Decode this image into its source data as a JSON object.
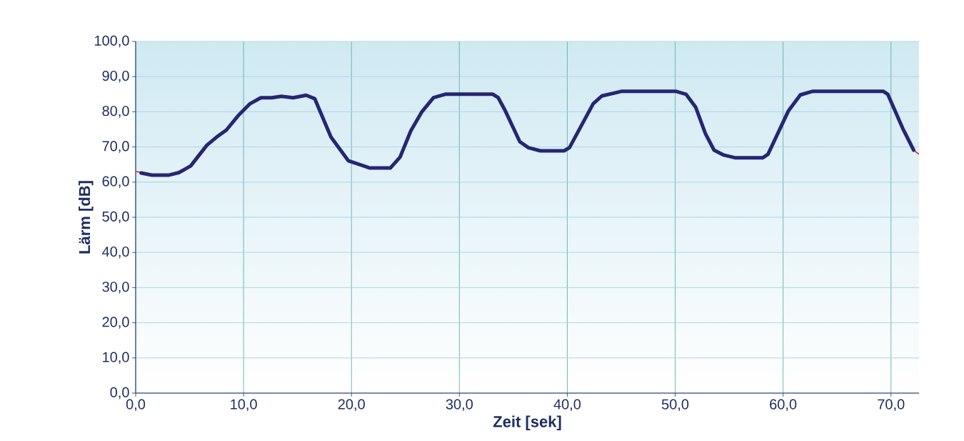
{
  "chart_data": {
    "type": "line",
    "xlabel": "Zeit [sek]",
    "ylabel": "Lärm [dB]",
    "xlim": [
      0,
      72.6
    ],
    "ylim": [
      0,
      100
    ],
    "xticks": [
      {
        "value": 0,
        "label": "0,0"
      },
      {
        "value": 10,
        "label": "10,0"
      },
      {
        "value": 20,
        "label": "20,0"
      },
      {
        "value": 30,
        "label": "30,0"
      },
      {
        "value": 40,
        "label": "40,0"
      },
      {
        "value": 50,
        "label": "50,0"
      },
      {
        "value": 60,
        "label": "60,0"
      },
      {
        "value": 70,
        "label": "70,0"
      }
    ],
    "yticks": [
      {
        "value": 0,
        "label": "0,0"
      },
      {
        "value": 10,
        "label": "10,0"
      },
      {
        "value": 20,
        "label": "20,0"
      },
      {
        "value": 30,
        "label": "30,0"
      },
      {
        "value": 40,
        "label": "40,0"
      },
      {
        "value": 50,
        "label": "50,0"
      },
      {
        "value": 60,
        "label": "60,0"
      },
      {
        "value": 70,
        "label": "70,0"
      },
      {
        "value": 80,
        "label": "80,0"
      },
      {
        "value": 90,
        "label": "90,0"
      },
      {
        "value": 100,
        "label": "100,0"
      }
    ],
    "grid": true,
    "marker": "none",
    "line_style": "solid",
    "series": [
      {
        "color": "#e02020",
        "x": [
          0,
          0.5,
          1.5,
          3.1,
          4.0,
          5.1,
          6.6,
          7.5,
          8.4,
          9.5,
          10.6,
          11.2,
          12.6,
          13.5,
          14.6,
          15.8,
          16.6,
          17.2,
          18.1,
          19.7,
          21.7,
          23.8,
          24.5,
          25.5,
          26.5,
          27.3,
          28.7,
          33.1,
          33.7,
          34.2,
          35.6,
          36.4,
          37.5,
          39.7,
          40.2,
          42.4,
          43.0,
          45.0,
          50.1,
          51.0,
          51.6,
          52.8,
          53.6,
          54.5,
          55.6,
          58.1,
          58.6,
          60.5,
          61.4,
          62.7,
          69.3,
          69.9,
          71.1,
          72.1,
          72.6
        ],
        "values": [
          63.0,
          62.8,
          null,
          null,
          null,
          null,
          null,
          null,
          null,
          null,
          null,
          null,
          null,
          null,
          null,
          null,
          null,
          null,
          null,
          null,
          null,
          null,
          null,
          null,
          null,
          null,
          null,
          null,
          null,
          null,
          null,
          null,
          null,
          null,
          null,
          null,
          null,
          null,
          null,
          null,
          null,
          null,
          null,
          null,
          null,
          null,
          null,
          null,
          null,
          null,
          null,
          null,
          null,
          69.1,
          67.9
        ]
      },
      {
        "color": "#262673",
        "x": [
          0.5,
          1.5,
          3.1,
          4.0,
          5.1,
          6.6,
          7.5,
          8.4,
          9.5,
          10.6,
          11.6,
          12.6,
          13.5,
          14.6,
          15.8,
          16.6,
          18.1,
          19.7,
          21.7,
          23.6,
          24.5,
          25.5,
          26.5,
          27.6,
          28.7,
          33.1,
          33.6,
          34.2,
          35.6,
          36.4,
          37.5,
          39.7,
          40.2,
          42.4,
          43.2,
          45.0,
          50.1,
          51.0,
          51.9,
          52.8,
          53.6,
          54.5,
          55.6,
          58.1,
          58.6,
          60.5,
          61.6,
          62.7,
          69.3,
          69.7,
          71.1,
          72.1
        ],
        "values": [
          62.6,
          62.0,
          62.0,
          62.7,
          64.6,
          70.5,
          72.8,
          74.8,
          78.9,
          82.3,
          84.0,
          84.0,
          84.4,
          84.0,
          84.7,
          83.7,
          72.8,
          66.1,
          64.0,
          64.0,
          67.1,
          74.6,
          79.9,
          84.0,
          85.0,
          85.0,
          84.0,
          80.6,
          71.5,
          69.8,
          68.9,
          68.9,
          69.8,
          82.3,
          84.5,
          85.8,
          85.8,
          85.0,
          81.3,
          73.8,
          69.1,
          67.7,
          66.9,
          66.9,
          67.9,
          80.3,
          84.8,
          85.8,
          85.8,
          85.0,
          75.2,
          69.1
        ]
      }
    ]
  }
}
